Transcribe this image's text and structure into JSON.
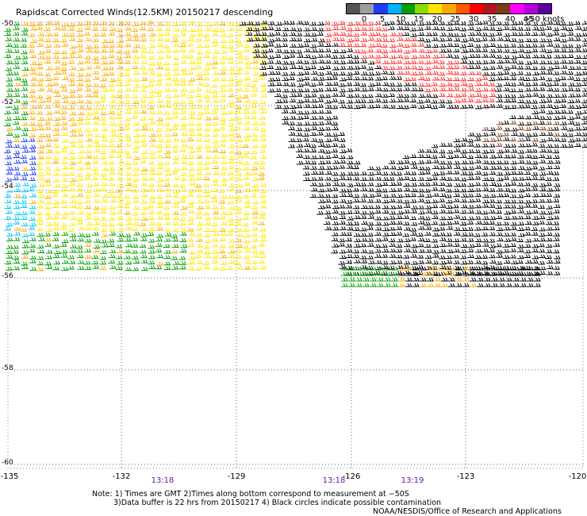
{
  "title": "Rapidscat Corrected Winds(12.5KM) 20150217 descending",
  "legend": {
    "colors": [
      "#555555",
      "#9e9e9e",
      "#1e3cff",
      "#00b4ff",
      "#00a000",
      "#8cdc00",
      "#ffe600",
      "#ffaa00",
      "#ff5a00",
      "#ff0000",
      "#b4141e",
      "#7a3b1a",
      "#ff00ff",
      "#b400dc",
      "#5a00a0"
    ],
    "labels": [
      "0",
      "5",
      "10",
      "15",
      "20",
      "25",
      "30",
      "35",
      "40",
      "45",
      ">50 knots"
    ]
  },
  "x_ticks": [
    "-135",
    "-132",
    "-129",
    "-126",
    "-123",
    "-120"
  ],
  "y_ticks": [
    "-50",
    "-52",
    "-54",
    "-56",
    "-58",
    "-60"
  ],
  "times": [
    "13:18",
    "13:18",
    "13:19"
  ],
  "notes": [
    "Note: 1) Times are GMT 2)Times along bottom correspond to measurement at −50S",
    "3)Data buffer is 22 hrs from 20150217 4) Black circles indicate possible contamination",
    "NOAA/NESDIS/Office of Research and Applications"
  ],
  "wind_regions": [
    {
      "color": "yellow",
      "speed_kt": 25
    },
    {
      "color": "orange",
      "speed_kt": 30
    },
    {
      "color": "green",
      "speed_kt": 20
    },
    {
      "color": "blue",
      "speed_kt": 10
    },
    {
      "color": "cyan",
      "speed_kt": 15
    },
    {
      "color": "black",
      "speed_kt": 0
    },
    {
      "color": "red",
      "speed_kt": 40
    }
  ]
}
